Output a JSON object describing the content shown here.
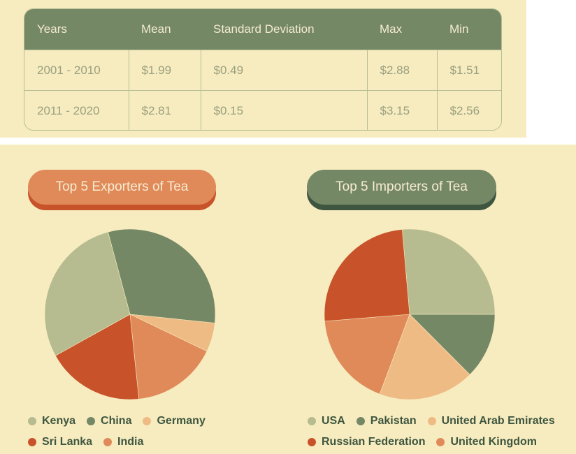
{
  "table": {
    "headers": [
      "Years",
      "Mean",
      "Standard Deviation",
      "Max",
      "Min"
    ],
    "rows": [
      [
        "2001 - 2010",
        "$1.99",
        "$0.49",
        "$2.88",
        "$1.51"
      ],
      [
        "2011 - 2020",
        "$2.81",
        "$0.15",
        "$3.15",
        "$2.56"
      ]
    ]
  },
  "exporters": {
    "title": "Top 5 Exporters of Tea"
  },
  "importers": {
    "title": "Top 5 Importers of Tea"
  },
  "chart_data": [
    {
      "type": "pie",
      "title": "Top 5 Exporters of Tea",
      "slices": [
        {
          "label": "China",
          "value": 30.8,
          "color": "#758866"
        },
        {
          "label": "Germany",
          "value": 5.5,
          "color": "#efbb85"
        },
        {
          "label": "India",
          "value": 16.2,
          "color": "#e08a5a"
        },
        {
          "label": "Sri Lanka",
          "value": 18.6,
          "color": "#c8532b"
        },
        {
          "label": "Kenya",
          "value": 28.9,
          "color": "#b6bb90"
        }
      ],
      "start_angle_deg": -15,
      "legend_rows": [
        [
          "Kenya",
          "China",
          "Germany"
        ],
        [
          "Sri Lanka",
          "India"
        ]
      ]
    },
    {
      "type": "pie",
      "title": "Top 5 Importers of Tea",
      "slices": [
        {
          "label": "USA",
          "value": 26.4,
          "color": "#b6bb90"
        },
        {
          "label": "Pakistan",
          "value": 12.5,
          "color": "#758866"
        },
        {
          "label": "United Arab Emirates",
          "value": 18.2,
          "color": "#efbb85"
        },
        {
          "label": "United Kingdom",
          "value": 18.0,
          "color": "#e08a5a"
        },
        {
          "label": "Russian Federation",
          "value": 24.9,
          "color": "#c8532b"
        }
      ],
      "start_angle_deg": -5,
      "legend_rows": [
        [
          "USA",
          "Pakistan",
          "United Arab Emirates"
        ],
        [
          "Russian Federation",
          "United Kingdom"
        ]
      ]
    }
  ]
}
